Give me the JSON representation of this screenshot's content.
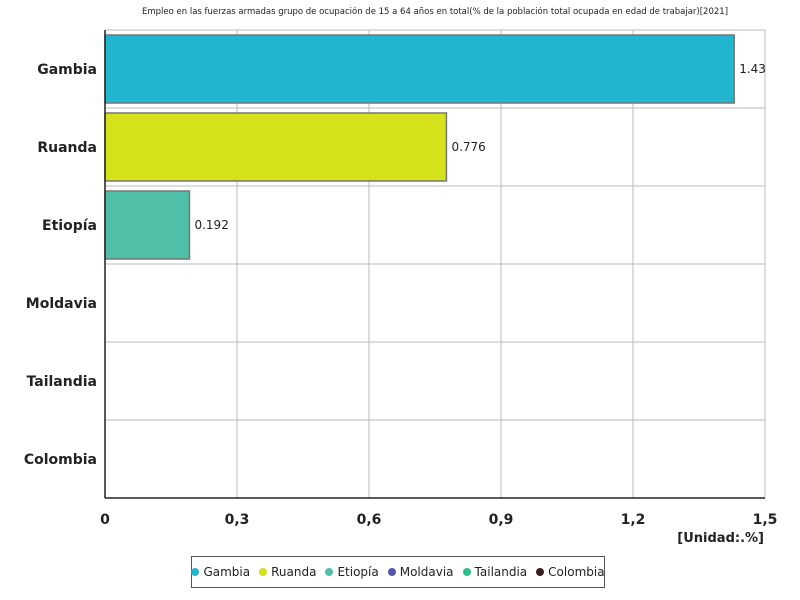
{
  "chart_data": {
    "type": "bar",
    "orientation": "horizontal",
    "title": "Empleo en las fuerzas armadas grupo de ocupación de 15 a 64 años en total(% de la población total ocupada en edad de trabajar)[2021]",
    "unit_label": "[Unidad:.%]",
    "categories": [
      "Gambia",
      "Ruanda",
      "Etiopía",
      "Moldavia",
      "Tailandia",
      "Colombia"
    ],
    "values": [
      1.43,
      0.776,
      0.192,
      null,
      null,
      null
    ],
    "value_labels": [
      "1.43",
      "0.776",
      "0.192",
      "",
      "",
      ""
    ],
    "colors": [
      "#22b5d0",
      "#d4e21a",
      "#4fbfa8",
      "#5552b0",
      "#2ebd8f",
      "#3a1b1f"
    ],
    "xlim": [
      0,
      1.5
    ],
    "x_ticks": [
      0,
      0.3,
      0.6,
      0.9,
      1.2,
      1.5
    ],
    "x_tick_labels": [
      "0",
      "0,3",
      "0,6",
      "0,9",
      "1,2",
      "1,5"
    ],
    "grid": true,
    "legend_position": "bottom"
  }
}
